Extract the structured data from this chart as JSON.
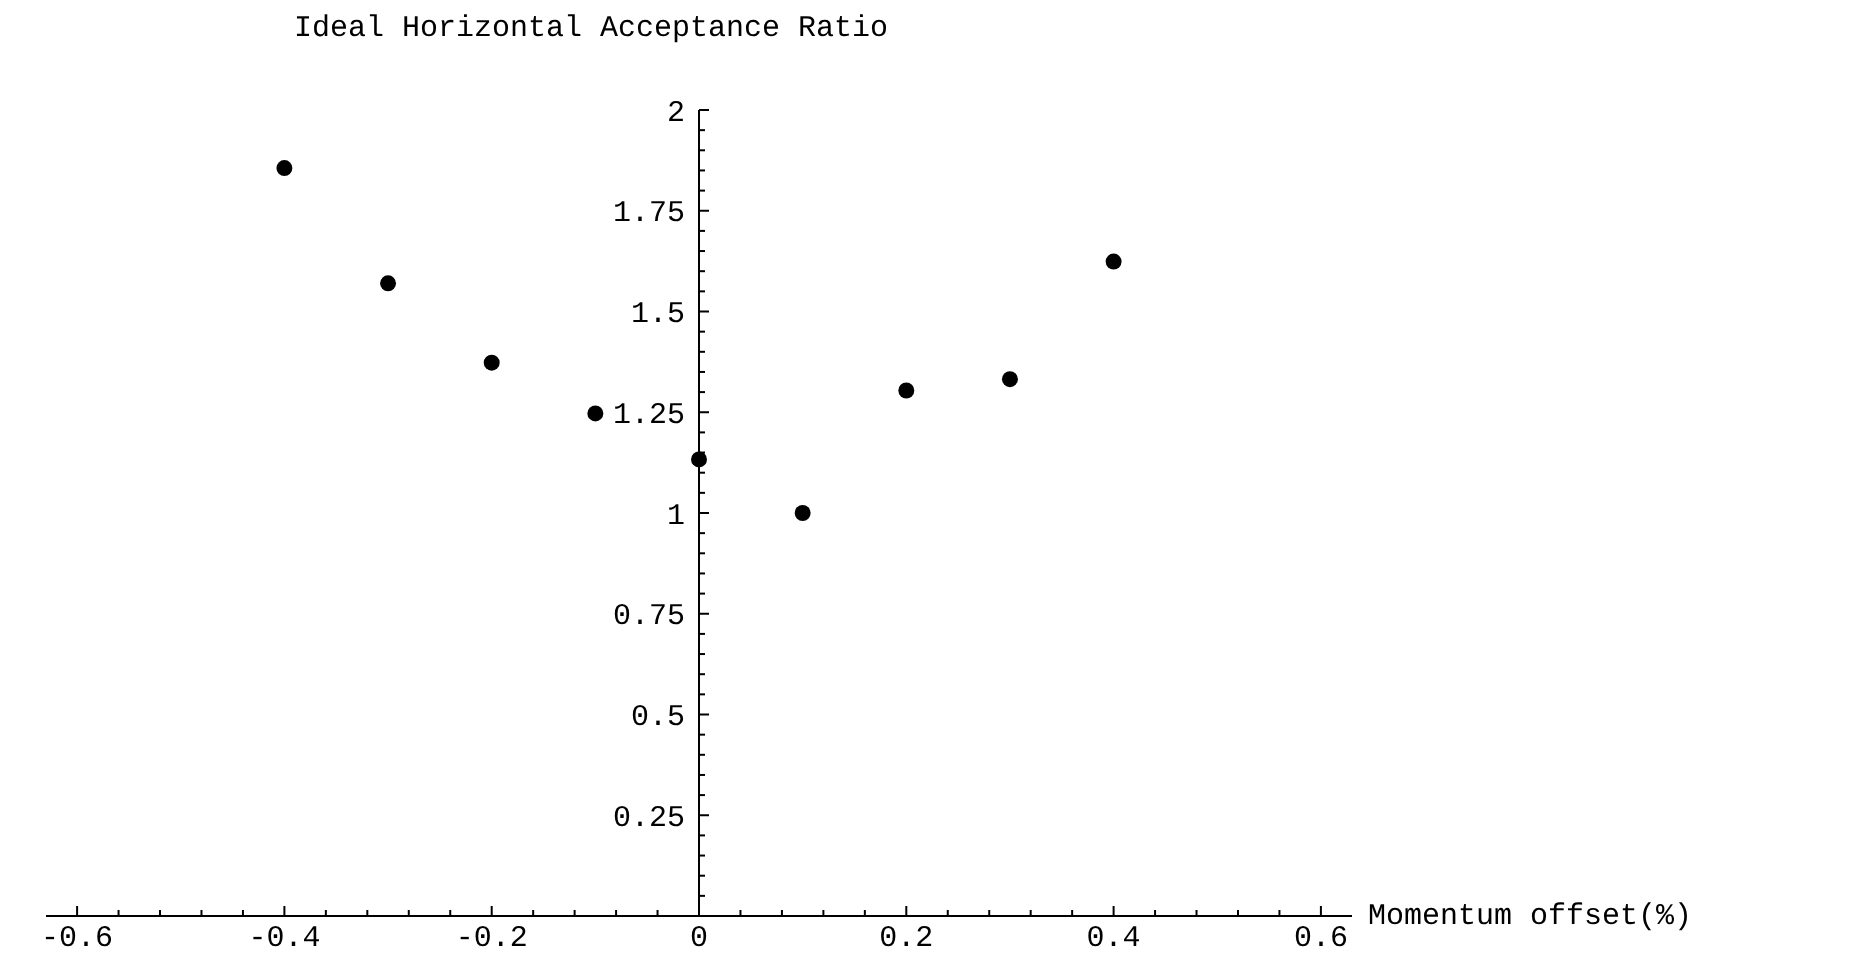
{
  "chart_data": {
    "type": "scatter",
    "title": "Ideal Horizontal Acceptance Ratio",
    "xlabel": "Momentum offset(%)",
    "x": [
      -0.4,
      -0.3,
      -0.2,
      -0.1,
      0,
      0.1,
      0.2,
      0.3,
      0.4
    ],
    "values": [
      1.856,
      1.57,
      1.373,
      1.247,
      1.133,
      1.0,
      1.304,
      1.332,
      1.624
    ],
    "color": "#000000",
    "marker": "circle",
    "grid": false,
    "xlim": [
      -0.63,
      0.63
    ],
    "ylim": [
      0,
      2
    ],
    "xticks": [
      -0.6,
      {
        "value": -0.56,
        "label": null
      },
      {
        "value": -0.52,
        "label": null
      },
      {
        "value": -0.48,
        "label": null
      },
      {
        "value": -0.44,
        "label": null
      },
      -0.4,
      {
        "value": -0.36,
        "label": null
      },
      {
        "value": -0.32,
        "label": null
      },
      {
        "value": -0.28,
        "label": null
      },
      {
        "value": -0.24,
        "label": null
      },
      -0.2,
      {
        "value": -0.16,
        "label": null
      },
      {
        "value": -0.12,
        "label": null
      },
      {
        "value": -0.08,
        "label": null
      },
      {
        "value": -0.04,
        "label": null
      },
      0,
      {
        "value": 0.04,
        "label": null
      },
      {
        "value": 0.08,
        "label": null
      },
      {
        "value": 0.12,
        "label": null
      },
      {
        "value": 0.16,
        "label": null
      },
      0.2,
      {
        "value": 0.24,
        "label": null
      },
      {
        "value": 0.28,
        "label": null
      },
      {
        "value": 0.32,
        "label": null
      },
      {
        "value": 0.36,
        "label": null
      },
      0.4,
      {
        "value": 0.44,
        "label": null
      },
      {
        "value": 0.48,
        "label": null
      },
      {
        "value": 0.52,
        "label": null
      },
      {
        "value": 0.56,
        "label": null
      },
      0.6
    ],
    "yticks": [
      {
        "value": 0.05,
        "label": null
      },
      {
        "value": 0.1,
        "label": null
      },
      {
        "value": 0.15,
        "label": null
      },
      {
        "value": 0.2,
        "label": null
      },
      0.25,
      {
        "value": 0.3,
        "label": null
      },
      {
        "value": 0.35,
        "label": null
      },
      {
        "value": 0.4,
        "label": null
      },
      {
        "value": 0.45,
        "label": null
      },
      0.5,
      {
        "value": 0.55,
        "label": null
      },
      {
        "value": 0.6,
        "label": null
      },
      {
        "value": 0.65,
        "label": null
      },
      {
        "value": 0.7,
        "label": null
      },
      0.75,
      {
        "value": 0.8,
        "label": null
      },
      {
        "value": 0.85,
        "label": null
      },
      {
        "value": 0.9,
        "label": null
      },
      {
        "value": 0.95,
        "label": null
      },
      1,
      {
        "value": 1.05,
        "label": null
      },
      {
        "value": 1.1,
        "label": null
      },
      {
        "value": 1.15,
        "label": null
      },
      {
        "value": 1.2,
        "label": null
      },
      1.25,
      {
        "value": 1.3,
        "label": null
      },
      {
        "value": 1.35,
        "label": null
      },
      {
        "value": 1.4,
        "label": null
      },
      {
        "value": 1.45,
        "label": null
      },
      1.5,
      {
        "value": 1.55,
        "label": null
      },
      {
        "value": 1.6,
        "label": null
      },
      {
        "value": 1.65,
        "label": null
      },
      {
        "value": 1.7,
        "label": null
      },
      1.75,
      {
        "value": 1.8,
        "label": null
      },
      {
        "value": 1.85,
        "label": null
      },
      {
        "value": 1.9,
        "label": null
      },
      {
        "value": 1.95,
        "label": null
      },
      2
    ]
  }
}
